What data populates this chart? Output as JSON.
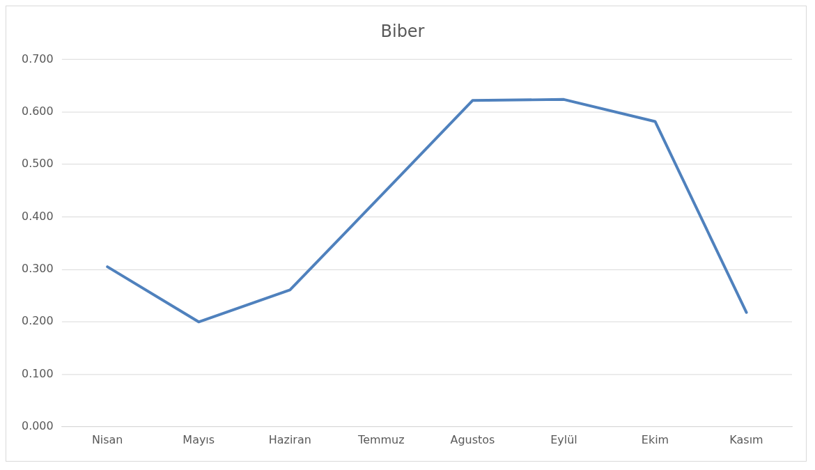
{
  "chart_data": {
    "type": "line",
    "title": "Biber",
    "categories": [
      "Nisan",
      "Mayıs",
      "Haziran",
      "Temmuz",
      "Agustos",
      "Eylül",
      "Ekim",
      "Kasım"
    ],
    "series": [
      {
        "color": "#4f81bd",
        "values": [
          0.305,
          0.2,
          0.261,
          0.441,
          0.622,
          0.624,
          0.582,
          0.218
        ]
      }
    ],
    "ylim": [
      0,
      0.7
    ],
    "yticks": [
      {
        "value": 0,
        "label": "0.000"
      },
      {
        "value": 0.1,
        "label": "0.100"
      },
      {
        "value": 0.2,
        "label": "0.200"
      },
      {
        "value": 0.3,
        "label": "0.300"
      },
      {
        "value": 0.4,
        "label": "0.400"
      },
      {
        "value": 0.5,
        "label": "0.500"
      },
      {
        "value": 0.6,
        "label": "0.600"
      },
      {
        "value": 0.7,
        "label": "0.700"
      }
    ],
    "grid": "y",
    "legend": false,
    "marker": "none",
    "line_style": "solid"
  }
}
